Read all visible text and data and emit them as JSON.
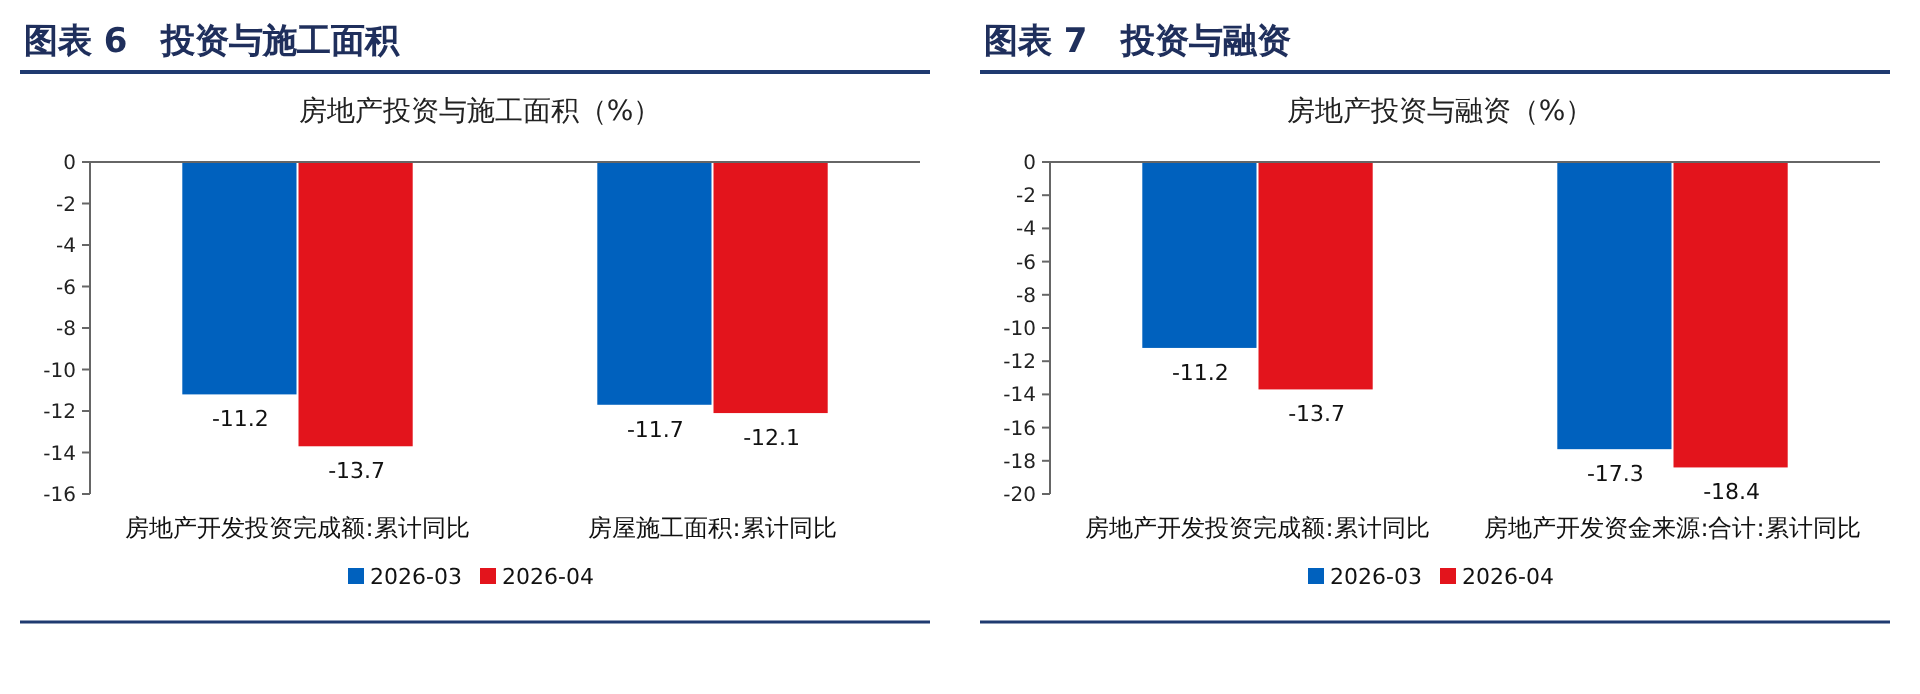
{
  "chart_data": [
    {
      "type": "bar",
      "title": "图表 6　投资与施工面积",
      "subtitle": "房地产投资与施工面积（%）",
      "categories": [
        "房地产开发投资完成额:累计同比",
        "房屋施工面积:累计同比"
      ],
      "series": [
        {
          "name": "2026-03",
          "color": "#0061be",
          "values": [
            -11.2,
            -11.7
          ]
        },
        {
          "name": "2026-04",
          "color": "#e3141c",
          "values": [
            -13.7,
            -12.1
          ]
        }
      ],
      "ylim": [
        -16,
        0
      ],
      "yticks": [
        0,
        -2,
        -4,
        -6,
        -8,
        -10,
        -12,
        -14,
        -16
      ],
      "data_labels": true,
      "legend": "bottom"
    },
    {
      "type": "bar",
      "title": "图表 7　投资与融资",
      "subtitle": "房地产投资与融资（%）",
      "categories": [
        "房地产开发投资完成额:累计同比",
        "房地产开发资金来源:合计:累计同比"
      ],
      "series": [
        {
          "name": "2026-03",
          "color": "#0061be",
          "values": [
            -11.2,
            -17.3
          ]
        },
        {
          "name": "2026-04",
          "color": "#e3141c",
          "values": [
            -13.7,
            -18.4
          ]
        }
      ],
      "ylim": [
        -20,
        0
      ],
      "yticks": [
        0,
        -2,
        -4,
        -6,
        -8,
        -10,
        -12,
        -14,
        -16,
        -18,
        -20
      ],
      "data_labels": true,
      "legend": "bottom"
    }
  ]
}
